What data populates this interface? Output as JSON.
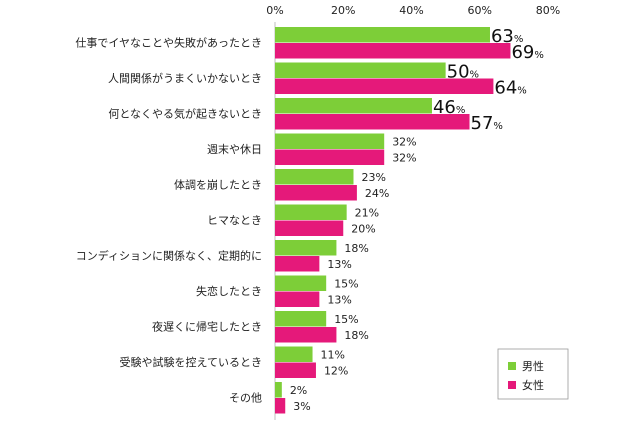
{
  "chart_data": {
    "type": "bar",
    "orientation": "horizontal",
    "categories": [
      "仕事でイヤなことや失敗があったとき",
      "人間関係がうまくいかないとき",
      "何となくやる気が起きないとき",
      "週末や休日",
      "体調を崩したとき",
      "ヒマなとき",
      "コンディションに関係なく、定期的に",
      "失恋したとき",
      "夜遅くに帰宅したとき",
      "受験や試験を控えているとき",
      "その他"
    ],
    "series": [
      {
        "name": "男性",
        "color": "#7dce38",
        "values": [
          63,
          50,
          46,
          32,
          23,
          21,
          18,
          15,
          15,
          11,
          2
        ]
      },
      {
        "name": "女性",
        "color": "#e5197a",
        "values": [
          69,
          64,
          57,
          32,
          24,
          20,
          13,
          13,
          18,
          12,
          3
        ]
      }
    ],
    "xlim": [
      0,
      80
    ],
    "ticks": [
      "0%",
      "20%",
      "40%",
      "60%",
      "80%"
    ],
    "tick_values": [
      0,
      20,
      40,
      60,
      80
    ],
    "unit": "%",
    "axis_position": "top",
    "grid": false,
    "legend_position": "bottom-right",
    "emphasized_top_n": 3
  }
}
